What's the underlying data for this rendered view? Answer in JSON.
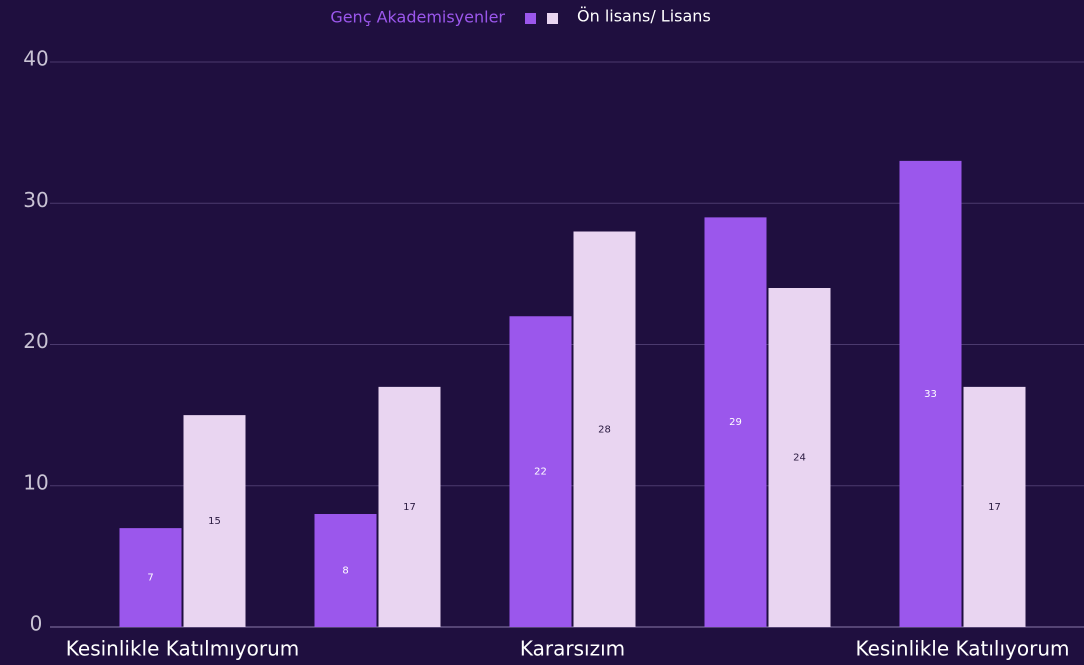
{
  "chart_data": {
    "type": "bar",
    "categories": [
      "Kesinlikle Katılmıyorum",
      null,
      "Kararsızım",
      null,
      "Kesinlikle Katılıyorum"
    ],
    "series": [
      {
        "name": "Genç Akademisyenler",
        "color": "#9b57ec",
        "values": [
          7,
          8,
          22,
          29,
          33
        ]
      },
      {
        "name": "Ön lisans/ Lisans",
        "color": "#e9d5f1",
        "values": [
          15,
          17,
          28,
          24,
          17
        ]
      }
    ],
    "ylim": [
      0,
      40
    ],
    "yticks": [
      0,
      10,
      20,
      30,
      40
    ],
    "grid": true,
    "legend": "top"
  }
}
